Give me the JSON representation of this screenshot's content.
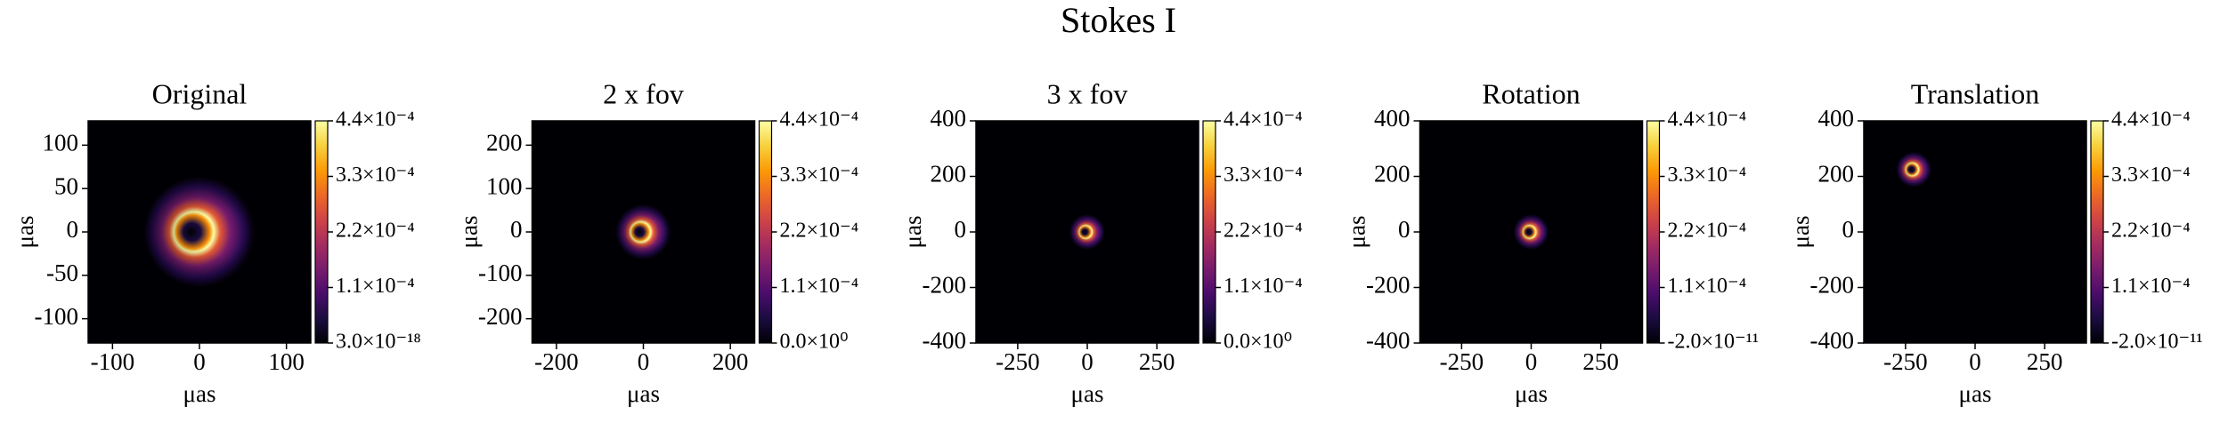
{
  "title": "Stokes I",
  "chart_data": [
    {
      "type": "image",
      "title": "Original",
      "xlabel": "μas",
      "ylabel": "μas",
      "xlim": [
        -128,
        128
      ],
      "ylim": [
        -128,
        128
      ],
      "xticks": [
        -100,
        0,
        100
      ],
      "yticks": [
        -100,
        -50,
        0,
        50,
        100
      ],
      "ring": {
        "x": 0,
        "y": 0,
        "radius": 22
      },
      "colorbar": {
        "colormap": "inferno",
        "clim": [
          3e-18,
          0.00044
        ],
        "ticks": [
          {
            "value": 3e-18,
            "label": "3.0×10⁻¹⁸"
          },
          {
            "value": 0.00011,
            "label": "1.1×10⁻⁴"
          },
          {
            "value": 0.00022,
            "label": "2.2×10⁻⁴"
          },
          {
            "value": 0.00033,
            "label": "3.3×10⁻⁴"
          },
          {
            "value": 0.00044,
            "label": "4.4×10⁻⁴"
          }
        ]
      }
    },
    {
      "type": "image",
      "title": "2 x fov",
      "xlabel": "μas",
      "ylabel": "μas",
      "xlim": [
        -256,
        256
      ],
      "ylim": [
        -256,
        256
      ],
      "xticks": [
        -200,
        0,
        200
      ],
      "yticks": [
        -200,
        -100,
        0,
        100,
        200
      ],
      "ring": {
        "x": 0,
        "y": 0,
        "radius": 22
      },
      "colorbar": {
        "colormap": "inferno",
        "clim": [
          0,
          0.00044
        ],
        "ticks": [
          {
            "value": 0,
            "label": "0.0×10⁰"
          },
          {
            "value": 0.00011,
            "label": "1.1×10⁻⁴"
          },
          {
            "value": 0.00022,
            "label": "2.2×10⁻⁴"
          },
          {
            "value": 0.00033,
            "label": "3.3×10⁻⁴"
          },
          {
            "value": 0.00044,
            "label": "4.4×10⁻⁴"
          }
        ]
      }
    },
    {
      "type": "image",
      "title": "3 x fov",
      "xlabel": "μas",
      "ylabel": "μas",
      "xlim": [
        -400,
        400
      ],
      "ylim": [
        -400,
        400
      ],
      "xticks": [
        -250,
        0,
        250
      ],
      "yticks": [
        -400,
        -200,
        0,
        200,
        400
      ],
      "ring": {
        "x": 0,
        "y": 0,
        "radius": 22
      },
      "colorbar": {
        "colormap": "inferno",
        "clim": [
          0,
          0.00044
        ],
        "ticks": [
          {
            "value": 0,
            "label": "0.0×10⁰"
          },
          {
            "value": 0.00011,
            "label": "1.1×10⁻⁴"
          },
          {
            "value": 0.00022,
            "label": "2.2×10⁻⁴"
          },
          {
            "value": 0.00033,
            "label": "3.3×10⁻⁴"
          },
          {
            "value": 0.00044,
            "label": "4.4×10⁻⁴"
          }
        ]
      }
    },
    {
      "type": "image",
      "title": "Rotation",
      "xlabel": "μas",
      "ylabel": "μas",
      "xlim": [
        -400,
        400
      ],
      "ylim": [
        -400,
        400
      ],
      "xticks": [
        -250,
        0,
        250
      ],
      "yticks": [
        -400,
        -200,
        0,
        200,
        400
      ],
      "ring": {
        "x": 0,
        "y": 0,
        "radius": 22
      },
      "colorbar": {
        "colormap": "inferno",
        "clim": [
          -2e-11,
          0.00044
        ],
        "ticks": [
          {
            "value": -2e-11,
            "label": "-2.0×10⁻¹¹"
          },
          {
            "value": 0.00011,
            "label": "1.1×10⁻⁴"
          },
          {
            "value": 0.00022,
            "label": "2.2×10⁻⁴"
          },
          {
            "value": 0.00033,
            "label": "3.3×10⁻⁴"
          },
          {
            "value": 0.00044,
            "label": "4.4×10⁻⁴"
          }
        ]
      }
    },
    {
      "type": "image",
      "title": "Translation",
      "xlabel": "μas",
      "ylabel": "μas",
      "xlim": [
        -400,
        400
      ],
      "ylim": [
        -400,
        400
      ],
      "xticks": [
        -250,
        0,
        250
      ],
      "yticks": [
        -400,
        -200,
        0,
        200,
        400
      ],
      "ring": {
        "x": -220,
        "y": 225,
        "radius": 22
      },
      "colorbar": {
        "colormap": "inferno",
        "clim": [
          -2e-11,
          0.00044
        ],
        "ticks": [
          {
            "value": -2e-11,
            "label": "-2.0×10⁻¹¹"
          },
          {
            "value": 0.00011,
            "label": "1.1×10⁻⁴"
          },
          {
            "value": 0.00022,
            "label": "2.2×10⁻⁴"
          },
          {
            "value": 0.00033,
            "label": "3.3×10⁻⁴"
          },
          {
            "value": 0.00044,
            "label": "4.4×10⁻⁴"
          }
        ]
      }
    }
  ]
}
